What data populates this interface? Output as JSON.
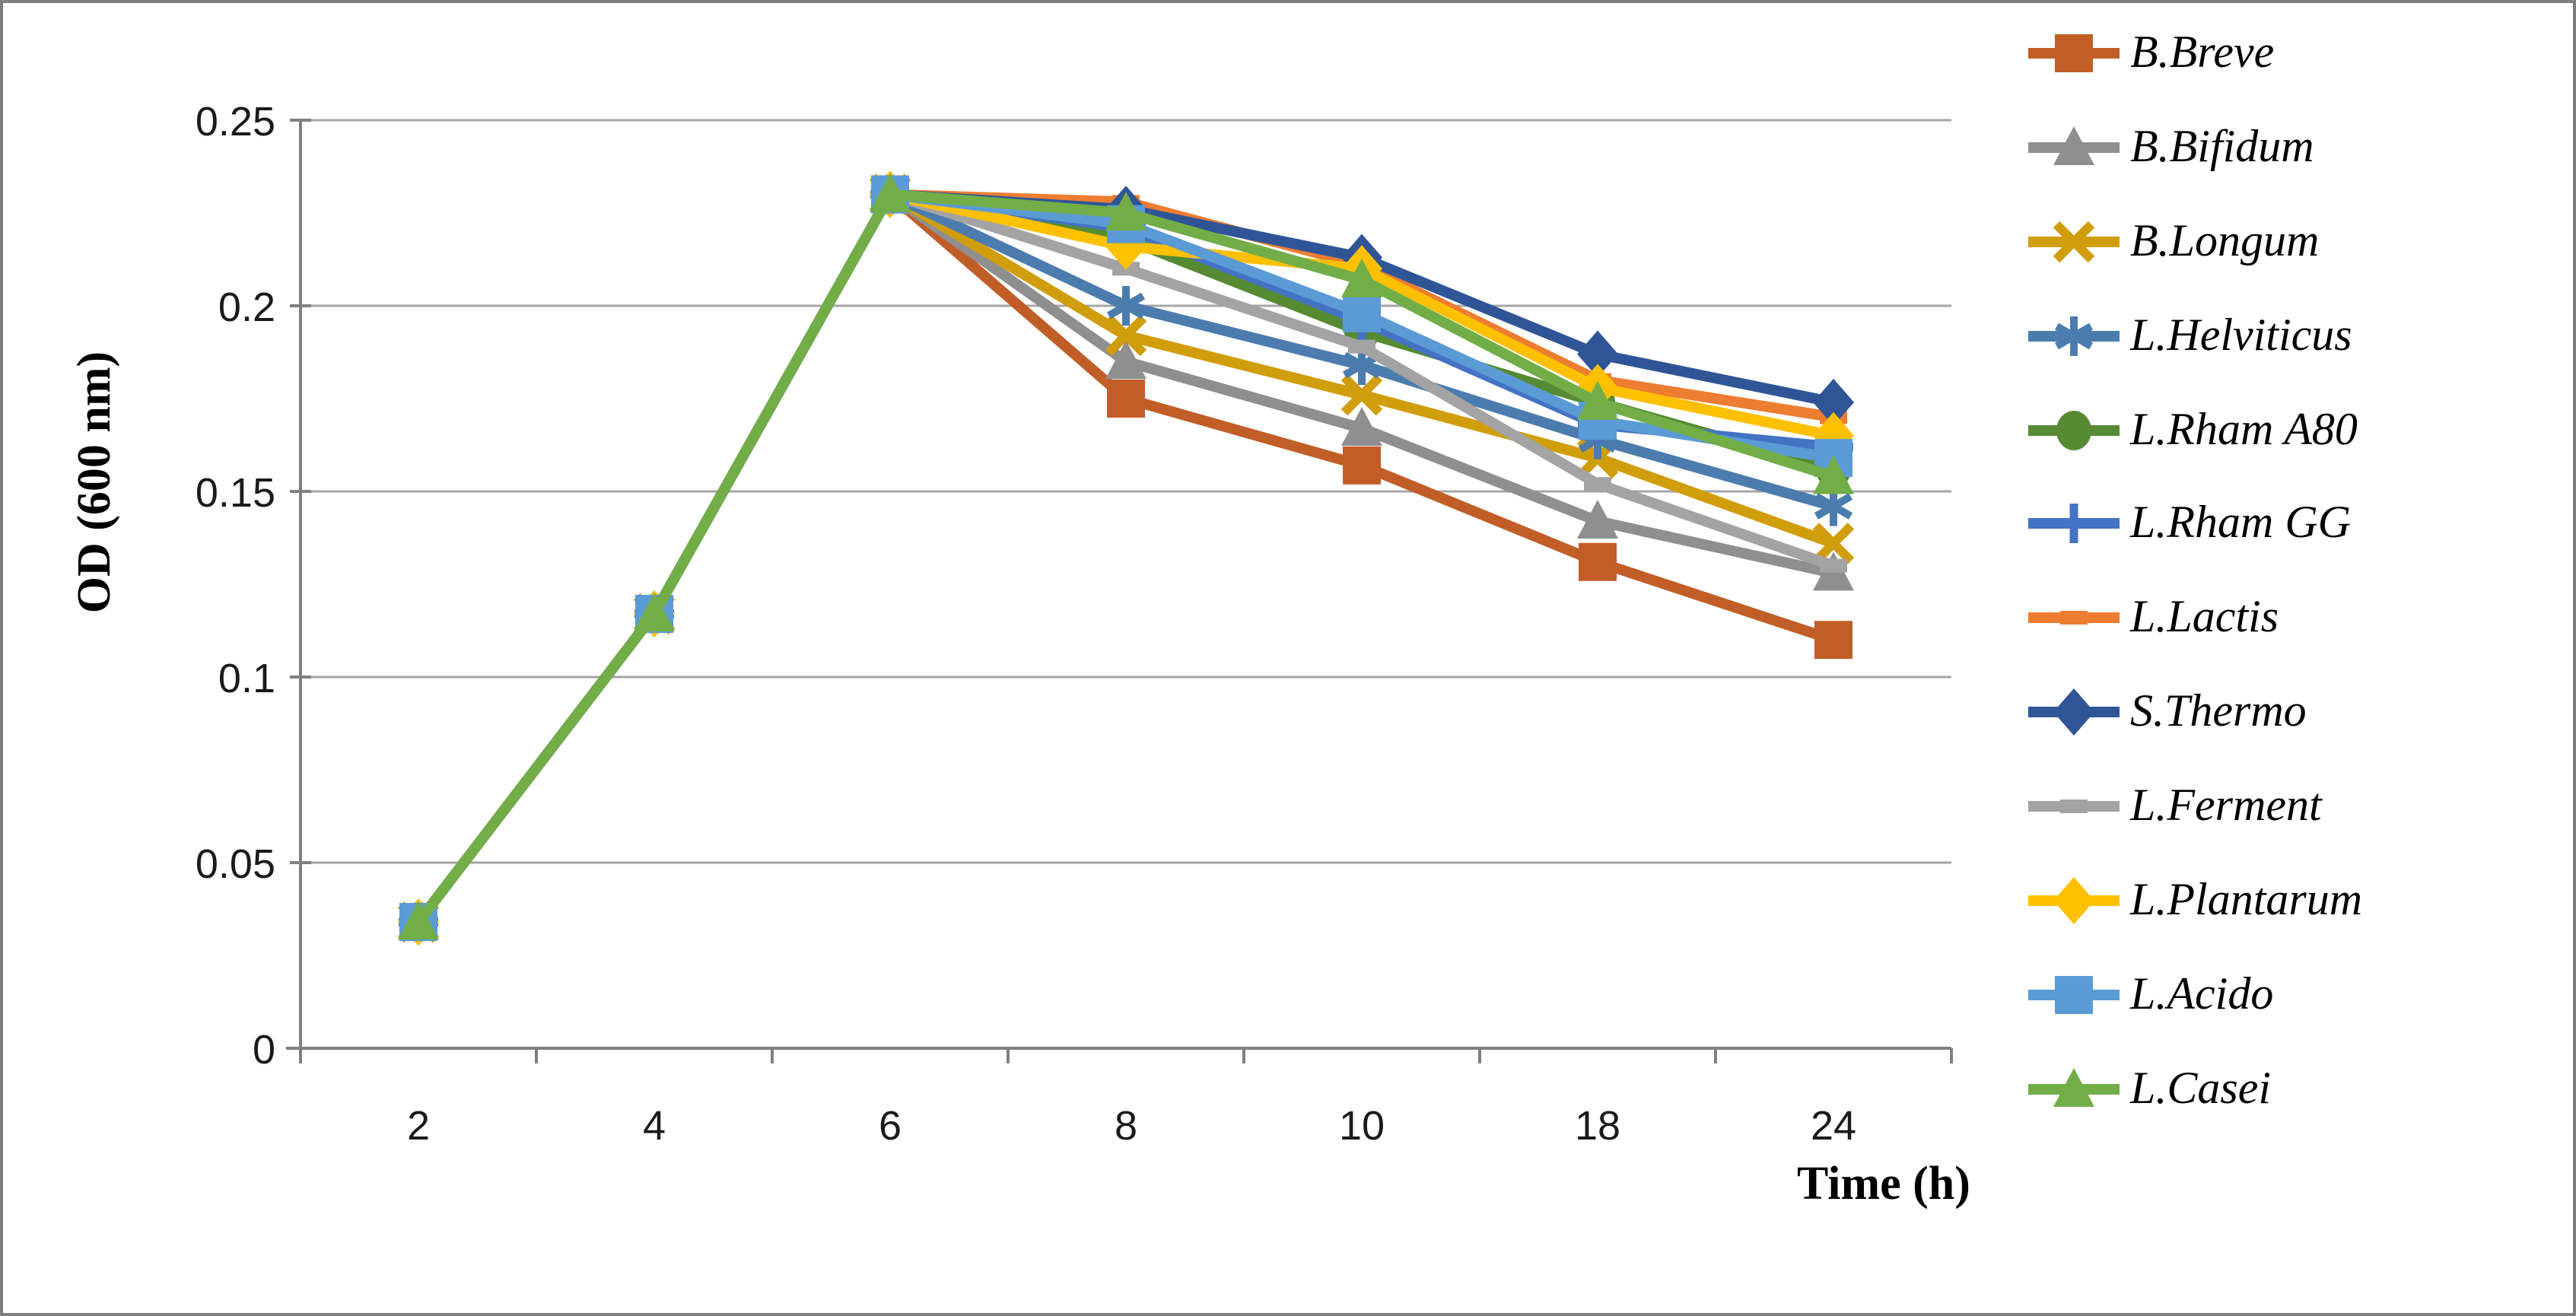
{
  "axes": {
    "x_title": "Time (h)",
    "y_title": "OD (600 nm)"
  },
  "chart_data": {
    "type": "line",
    "title": "",
    "xlabel": "Time (h)",
    "ylabel": "OD (600 nm)",
    "categories": [
      "2",
      "4",
      "6",
      "8",
      "10",
      "18",
      "24"
    ],
    "ylim": [
      0,
      0.25
    ],
    "y_tick_step": 0.05,
    "y_tick_labels": [
      "0",
      "0.05",
      "0.1",
      "0.15",
      "0.2",
      "0.25"
    ],
    "grid": true,
    "legend_position": "right",
    "series": [
      {
        "name": "B.Breve",
        "color": "#C15E28",
        "marker": "square",
        "values": [
          0.034,
          0.117,
          0.23,
          0.175,
          0.157,
          0.131,
          0.11
        ]
      },
      {
        "name": "B.Bifidum",
        "color": "#8F8F8F",
        "marker": "triangle",
        "values": [
          0.034,
          0.117,
          0.23,
          0.185,
          0.167,
          0.142,
          0.128
        ]
      },
      {
        "name": "B.Longum",
        "color": "#D09D0D",
        "marker": "x",
        "values": [
          0.034,
          0.117,
          0.23,
          0.192,
          0.176,
          0.159,
          0.136
        ]
      },
      {
        "name": "L.Helviticus",
        "color": "#4B7CAD",
        "marker": "asterisk",
        "values": [
          0.034,
          0.117,
          0.23,
          0.2,
          0.184,
          0.164,
          0.146
        ]
      },
      {
        "name": "L.Rham A80",
        "color": "#568A33",
        "marker": "circle",
        "values": [
          0.034,
          0.117,
          0.23,
          0.218,
          0.193,
          0.174,
          0.156
        ]
      },
      {
        "name": "L.Rham GG",
        "color": "#4472C4",
        "marker": "plus",
        "values": [
          0.034,
          0.117,
          0.23,
          0.221,
          0.196,
          0.168,
          0.162
        ]
      },
      {
        "name": "L.Lactis",
        "color": "#ED7D31",
        "marker": "dash",
        "values": [
          0.034,
          0.117,
          0.23,
          0.228,
          0.211,
          0.18,
          0.17
        ]
      },
      {
        "name": "S.Thermo",
        "color": "#2F5597",
        "marker": "diamond",
        "values": [
          0.034,
          0.117,
          0.23,
          0.226,
          0.213,
          0.187,
          0.174
        ]
      },
      {
        "name": "L.Ferment",
        "color": "#A3A3A3",
        "marker": "dash",
        "values": [
          0.034,
          0.117,
          0.23,
          0.21,
          0.189,
          0.152,
          0.13
        ]
      },
      {
        "name": "L.Plantarum",
        "color": "#FFC000",
        "marker": "diamond",
        "values": [
          0.034,
          0.117,
          0.23,
          0.216,
          0.21,
          0.178,
          0.165
        ]
      },
      {
        "name": "L.Acido",
        "color": "#5B9BD5",
        "marker": "square",
        "values": [
          0.034,
          0.117,
          0.23,
          0.222,
          0.198,
          0.169,
          0.159
        ]
      },
      {
        "name": "L.Casei",
        "color": "#72AD48",
        "marker": "triangle",
        "values": [
          0.034,
          0.117,
          0.23,
          0.225,
          0.207,
          0.174,
          0.154
        ]
      }
    ],
    "style": {
      "grid_color": "#A6A6A6",
      "axis_color": "#808080",
      "tick_label_color": "#1A1A1A",
      "figure_border_color": "#7F7F7F"
    }
  }
}
